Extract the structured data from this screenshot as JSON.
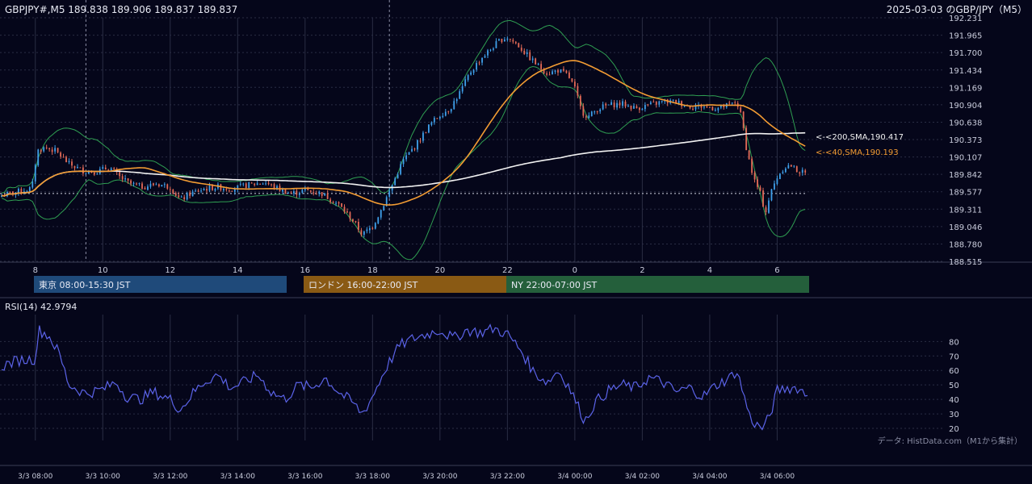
{
  "header": {
    "left": "GBPJPY#,M5 189.838 189.906 189.837 189.837",
    "right": "2025-03-03 のGBP/JPY（M5）"
  },
  "colors": {
    "background": "#05061a",
    "grid": "#2a2d44",
    "up": "#3fa0ea",
    "down": "#e46a57",
    "sma40": "#f39c33",
    "sma200": "#f2f2f2",
    "bollinger": "#2f9e52",
    "rsi": "#5b63e8",
    "tokyo": "#1f4a7a",
    "london": "#8a5a14",
    "ny": "#245f3b"
  },
  "sessions": [
    {
      "label": "東京 08:00-15:30 JST"
    },
    {
      "label": "ロンドン 16:00-22:00 JST"
    },
    {
      "label": "NY 22:00-07:00 JST"
    }
  ],
  "annotations": {
    "sma200": "<-<200,SMA,190.417",
    "sma40": "<-<40,SMA,190.193"
  },
  "source_note": "データ: HistData.com（M1から集計）",
  "chart_data": [
    {
      "type": "candlestick",
      "title": "2025-03-03 のGBP/JPY（M5）",
      "ylim": [
        188.515,
        192.231
      ],
      "y_ticks": [
        "192.231",
        "191.965",
        "191.700",
        "191.434",
        "191.169",
        "190.904",
        "190.638",
        "190.373",
        "190.107",
        "189.842",
        "189.577",
        "189.311",
        "189.046",
        "188.780",
        "188.515"
      ],
      "x_ticks": [
        "8",
        "10",
        "12",
        "14",
        "16",
        "18",
        "20",
        "22",
        "0",
        "2",
        "4",
        "6"
      ],
      "x_range_hours": [
        7.0,
        30.9
      ],
      "reference_line": 189.55,
      "series": [
        {
          "name": "40,SMA",
          "last": 190.193
        },
        {
          "name": "200,SMA",
          "last": 190.417
        }
      ],
      "close_path": [
        [
          7.0,
          189.52
        ],
        [
          7.5,
          189.58
        ],
        [
          7.9,
          189.63
        ],
        [
          8.05,
          190.2
        ],
        [
          8.3,
          190.25
        ],
        [
          8.6,
          190.2
        ],
        [
          9.0,
          190.0
        ],
        [
          9.4,
          189.9
        ],
        [
          9.8,
          189.88
        ],
        [
          10.2,
          189.95
        ],
        [
          10.5,
          189.8
        ],
        [
          10.8,
          189.7
        ],
        [
          11.2,
          189.65
        ],
        [
          11.6,
          189.7
        ],
        [
          12.0,
          189.65
        ],
        [
          12.3,
          189.45
        ],
        [
          12.6,
          189.55
        ],
        [
          13.0,
          189.62
        ],
        [
          13.4,
          189.65
        ],
        [
          13.8,
          189.62
        ],
        [
          14.3,
          189.68
        ],
        [
          14.8,
          189.72
        ],
        [
          15.2,
          189.62
        ],
        [
          15.6,
          189.55
        ],
        [
          16.0,
          189.6
        ],
        [
          16.5,
          189.55
        ],
        [
          17.0,
          189.38
        ],
        [
          17.4,
          189.15
        ],
        [
          17.7,
          188.92
        ],
        [
          18.0,
          189.05
        ],
        [
          18.3,
          189.35
        ],
        [
          18.6,
          189.7
        ],
        [
          18.9,
          190.05
        ],
        [
          19.3,
          190.3
        ],
        [
          19.7,
          190.6
        ],
        [
          20.0,
          190.75
        ],
        [
          20.3,
          190.85
        ],
        [
          20.6,
          191.1
        ],
        [
          20.9,
          191.4
        ],
        [
          21.2,
          191.6
        ],
        [
          21.5,
          191.75
        ],
        [
          21.8,
          191.9
        ],
        [
          22.0,
          191.93
        ],
        [
          22.3,
          191.82
        ],
        [
          22.6,
          191.65
        ],
        [
          22.9,
          191.5
        ],
        [
          23.2,
          191.38
        ],
        [
          23.5,
          191.43
        ],
        [
          23.8,
          191.35
        ],
        [
          24.0,
          191.15
        ],
        [
          24.2,
          190.8
        ],
        [
          24.4,
          190.72
        ],
        [
          24.7,
          190.85
        ],
        [
          25.0,
          190.9
        ],
        [
          25.4,
          190.92
        ],
        [
          25.8,
          190.85
        ],
        [
          26.2,
          190.9
        ],
        [
          26.6,
          190.95
        ],
        [
          27.0,
          190.95
        ],
        [
          27.4,
          190.88
        ],
        [
          27.8,
          190.88
        ],
        [
          28.2,
          190.85
        ],
        [
          28.6,
          190.9
        ],
        [
          28.8,
          190.95
        ],
        [
          28.95,
          190.7
        ],
        [
          29.1,
          190.2
        ],
        [
          29.3,
          189.78
        ],
        [
          29.5,
          189.55
        ],
        [
          29.65,
          189.25
        ],
        [
          29.8,
          189.55
        ],
        [
          30.0,
          189.8
        ],
        [
          30.2,
          189.95
        ],
        [
          30.4,
          189.98
        ],
        [
          30.6,
          189.9
        ],
        [
          30.9,
          189.84
        ]
      ]
    },
    {
      "type": "line",
      "title": "RSI(14) 42.9794",
      "ylim": [
        15,
        93
      ],
      "y_ticks": [
        "80",
        "70",
        "60",
        "50",
        "40",
        "30",
        "20"
      ],
      "x_ticks": [
        "3/3 08:00",
        "3/3 10:00",
        "3/3 12:00",
        "3/3 14:00",
        "3/3 16:00",
        "3/3 18:00",
        "3/3 20:00",
        "3/3 22:00",
        "3/4 00:00",
        "3/4 02:00",
        "3/4 04:00",
        "3/4 06:00"
      ],
      "series": [
        {
          "name": "RSI(14)",
          "points": [
            [
              7.0,
              63
            ],
            [
              7.5,
              67
            ],
            [
              8.0,
              68
            ],
            [
              8.1,
              88
            ],
            [
              8.4,
              84
            ],
            [
              8.7,
              72
            ],
            [
              9.0,
              50
            ],
            [
              9.5,
              44
            ],
            [
              10.0,
              47
            ],
            [
              10.4,
              52
            ],
            [
              10.7,
              42
            ],
            [
              11.1,
              40
            ],
            [
              11.5,
              45
            ],
            [
              12.0,
              40
            ],
            [
              12.3,
              33
            ],
            [
              12.7,
              45
            ],
            [
              13.0,
              52
            ],
            [
              13.4,
              57
            ],
            [
              13.8,
              48
            ],
            [
              14.2,
              52
            ],
            [
              14.6,
              57
            ],
            [
              15.0,
              45
            ],
            [
              15.4,
              40
            ],
            [
              15.8,
              50
            ],
            [
              16.2,
              48
            ],
            [
              16.6,
              55
            ],
            [
              17.0,
              45
            ],
            [
              17.4,
              38
            ],
            [
              17.7,
              30
            ],
            [
              18.0,
              42
            ],
            [
              18.4,
              62
            ],
            [
              18.8,
              77
            ],
            [
              19.2,
              82
            ],
            [
              19.6,
              85
            ],
            [
              20.0,
              88
            ],
            [
              20.4,
              82
            ],
            [
              20.8,
              88
            ],
            [
              21.2,
              86
            ],
            [
              21.6,
              89
            ],
            [
              22.0,
              85
            ],
            [
              22.4,
              74
            ],
            [
              22.8,
              58
            ],
            [
              23.2,
              52
            ],
            [
              23.5,
              60
            ],
            [
              23.8,
              50
            ],
            [
              24.1,
              35
            ],
            [
              24.3,
              25
            ],
            [
              24.6,
              38
            ],
            [
              25.0,
              46
            ],
            [
              25.4,
              50
            ],
            [
              25.8,
              48
            ],
            [
              26.2,
              55
            ],
            [
              26.6,
              52
            ],
            [
              27.0,
              45
            ],
            [
              27.4,
              48
            ],
            [
              27.8,
              42
            ],
            [
              28.2,
              50
            ],
            [
              28.6,
              55
            ],
            [
              28.8,
              60
            ],
            [
              29.0,
              44
            ],
            [
              29.2,
              27
            ],
            [
              29.4,
              22
            ],
            [
              29.6,
              20
            ],
            [
              29.8,
              30
            ],
            [
              30.0,
              46
            ],
            [
              30.3,
              48
            ],
            [
              30.6,
              48
            ],
            [
              30.9,
              43
            ]
          ]
        }
      ]
    }
  ]
}
